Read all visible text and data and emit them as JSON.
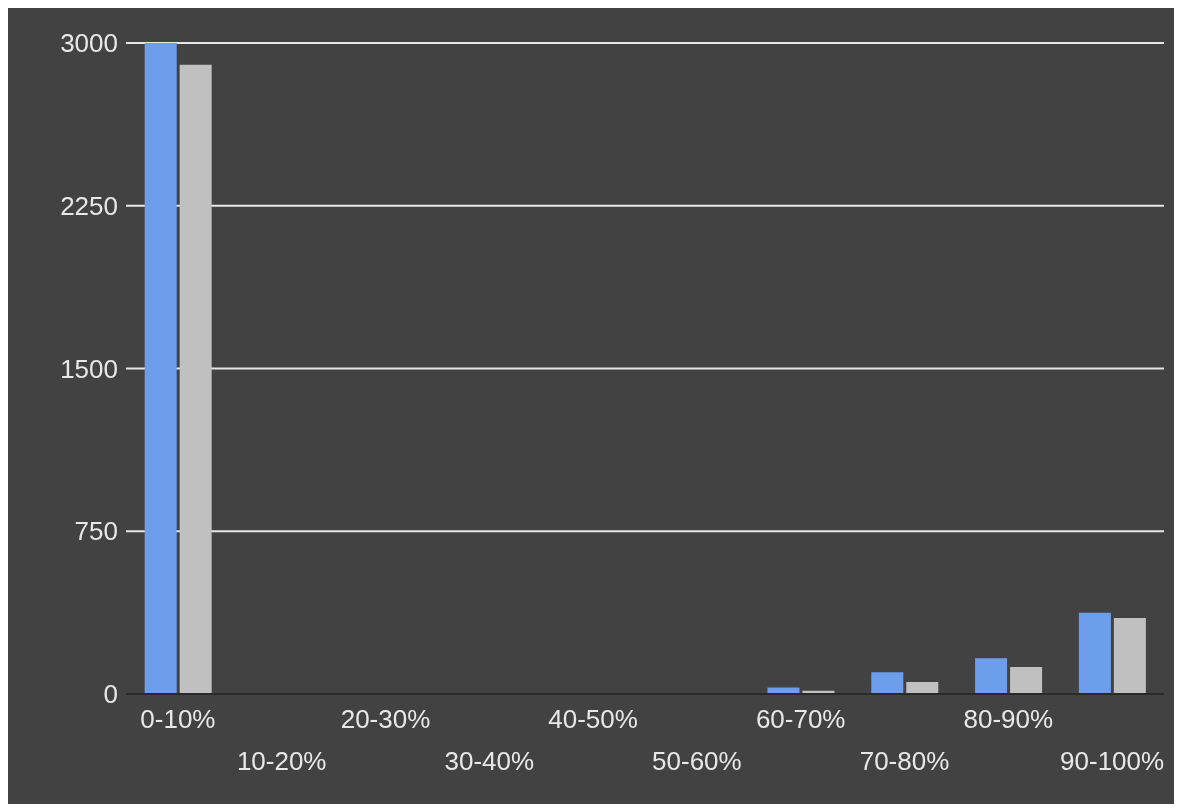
{
  "chart_data": {
    "type": "bar",
    "categories": [
      "0-10%",
      "10-20%",
      "20-30%",
      "30-40%",
      "40-50%",
      "50-60%",
      "60-70%",
      "70-80%",
      "80-90%",
      "90-100%"
    ],
    "series": [
      {
        "color": "#6d9eeb",
        "values": [
          3000,
          0,
          0,
          0,
          0,
          0,
          30,
          100,
          165,
          375
        ]
      },
      {
        "color": "#c0c0c0",
        "values": [
          2900,
          0,
          0,
          0,
          0,
          0,
          15,
          55,
          125,
          350
        ]
      }
    ],
    "ylim": [
      0,
      3000
    ],
    "yticks": [
      0,
      750,
      1500,
      2250,
      3000
    ],
    "grid": "y",
    "legend": false
  }
}
